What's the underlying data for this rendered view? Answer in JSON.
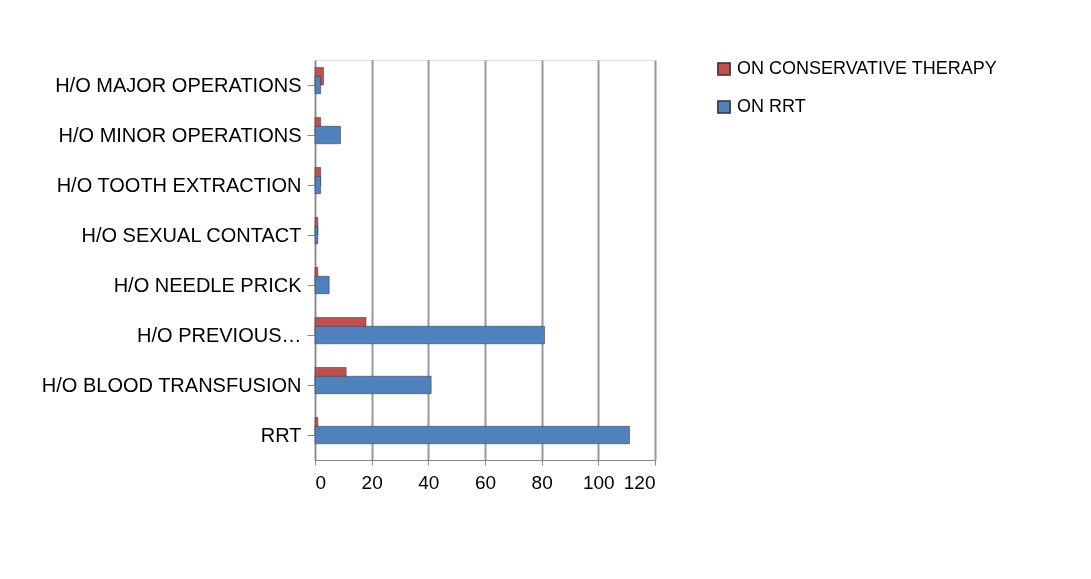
{
  "chart_data": {
    "type": "bar",
    "orientation": "horizontal",
    "categories": [
      "H/O MAJOR OPERATIONS",
      "H/O MINOR OPERATIONS",
      "H/O TOOTH EXTRACTION",
      "H/O SEXUAL CONTACT",
      "H/O NEEDLE PRICK",
      "H/O PREVIOUS…",
      "H/O BLOOD TRANSFUSION",
      "RRT"
    ],
    "series": [
      {
        "name": "ON CONSERVATIVE THERAPY",
        "color": "#c0504d",
        "values": [
          3,
          2,
          2,
          1,
          1,
          18,
          11,
          1
        ]
      },
      {
        "name": "ON RRT",
        "color": "#4f81bd",
        "values": [
          2,
          9,
          2,
          1,
          5,
          81,
          41,
          111
        ]
      }
    ],
    "xlim": [
      0,
      120
    ],
    "xticks": [
      0,
      20,
      40,
      60,
      80,
      100,
      120
    ],
    "grid": "x",
    "legend": "right"
  }
}
